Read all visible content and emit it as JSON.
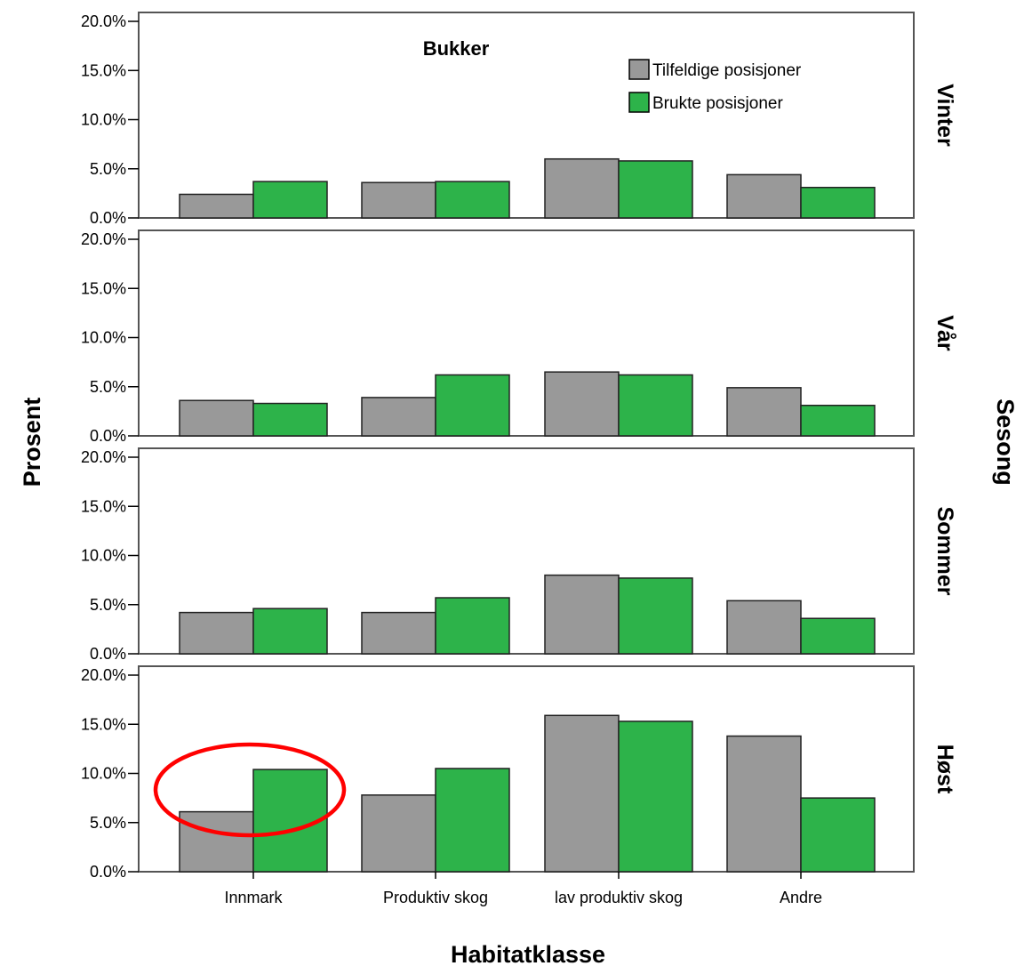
{
  "chart_data": {
    "type": "bar",
    "title": "Bukker",
    "xlabel": "Habitatklasse",
    "ylabel": "Prosent",
    "facet_label": "Sesong",
    "categories": [
      "Innmark",
      "Produktiv skog",
      "lav produktiv skog",
      "Andre"
    ],
    "yticks": [
      "0.0%",
      "5.0%",
      "10.0%",
      "15.0%",
      "20.0%"
    ],
    "ylim": [
      0,
      20
    ],
    "legend": {
      "position": "top-right"
    },
    "colors": {
      "Tilfeldige posisjoner": "#999999",
      "Brukte posisjoner": "#2db34a"
    },
    "panels": [
      {
        "name": "Vinter",
        "series": [
          {
            "name": "Tilfeldige posisjoner",
            "values": [
              2.4,
              3.6,
              6.0,
              4.4
            ]
          },
          {
            "name": "Brukte posisjoner",
            "values": [
              3.7,
              3.7,
              5.8,
              3.1
            ]
          }
        ]
      },
      {
        "name": "Vår",
        "series": [
          {
            "name": "Tilfeldige posisjoner",
            "values": [
              3.6,
              3.9,
              6.5,
              4.9
            ]
          },
          {
            "name": "Brukte posisjoner",
            "values": [
              3.3,
              6.2,
              6.2,
              3.1
            ]
          }
        ]
      },
      {
        "name": "Sommer",
        "series": [
          {
            "name": "Tilfeldige posisjoner",
            "values": [
              4.2,
              4.2,
              8.0,
              5.4
            ]
          },
          {
            "name": "Brukte posisjoner",
            "values": [
              4.6,
              5.7,
              7.7,
              3.6
            ]
          }
        ]
      },
      {
        "name": "Høst",
        "series": [
          {
            "name": "Tilfeldige posisjoner",
            "values": [
              6.1,
              7.8,
              15.9,
              13.8
            ]
          },
          {
            "name": "Brukte posisjoner",
            "values": [
              10.4,
              10.5,
              15.3,
              7.5
            ]
          }
        ]
      }
    ],
    "annotation": {
      "type": "ellipse",
      "panel": "Høst",
      "category": "Innmark",
      "color": "#ff0000"
    }
  }
}
